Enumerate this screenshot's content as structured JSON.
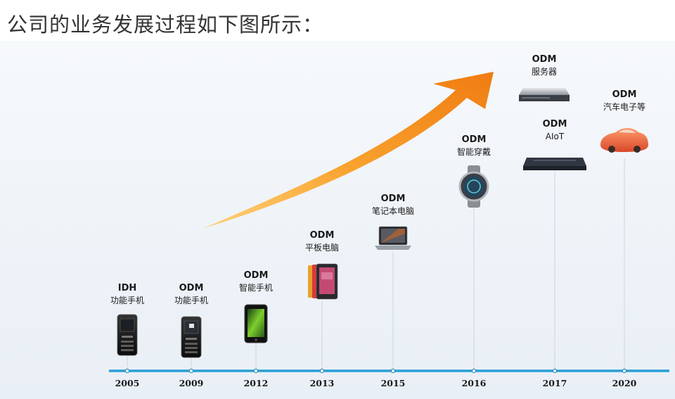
{
  "headline": "公司的业务发展过程如下图所示：",
  "milestones": [
    {
      "year": "2005",
      "model": "IDH",
      "product": "功能手机",
      "icon": "feature-phone-icon"
    },
    {
      "year": "2009",
      "model": "ODM",
      "product": "功能手机",
      "icon": "feature-phone-icon"
    },
    {
      "year": "2012",
      "model": "ODM",
      "product": "智能手机",
      "icon": "smartphone-icon"
    },
    {
      "year": "2013",
      "model": "ODM",
      "product": "平板电脑",
      "icon": "tablet-icon"
    },
    {
      "year": "2015",
      "model": "ODM",
      "product": "笔记本电脑",
      "icon": "laptop-icon"
    },
    {
      "year": "2016",
      "model": "ODM",
      "product": "智能穿戴",
      "icon": "smartwatch-icon"
    },
    {
      "year": "2017",
      "model": "ODM",
      "product": "AIoT",
      "icon": "aiot-device-icon"
    },
    {
      "year": "2017",
      "model": "ODM",
      "product": "服务器",
      "icon": "server-icon"
    },
    {
      "year": "2020",
      "model": "ODM",
      "product": "汽车电子等",
      "icon": "car-icon"
    }
  ],
  "colors": {
    "axis": "#2a9fd6",
    "arrow_light": "#ffc65a",
    "arrow_dark": "#f07c12",
    "text": "#1a1a1a"
  }
}
